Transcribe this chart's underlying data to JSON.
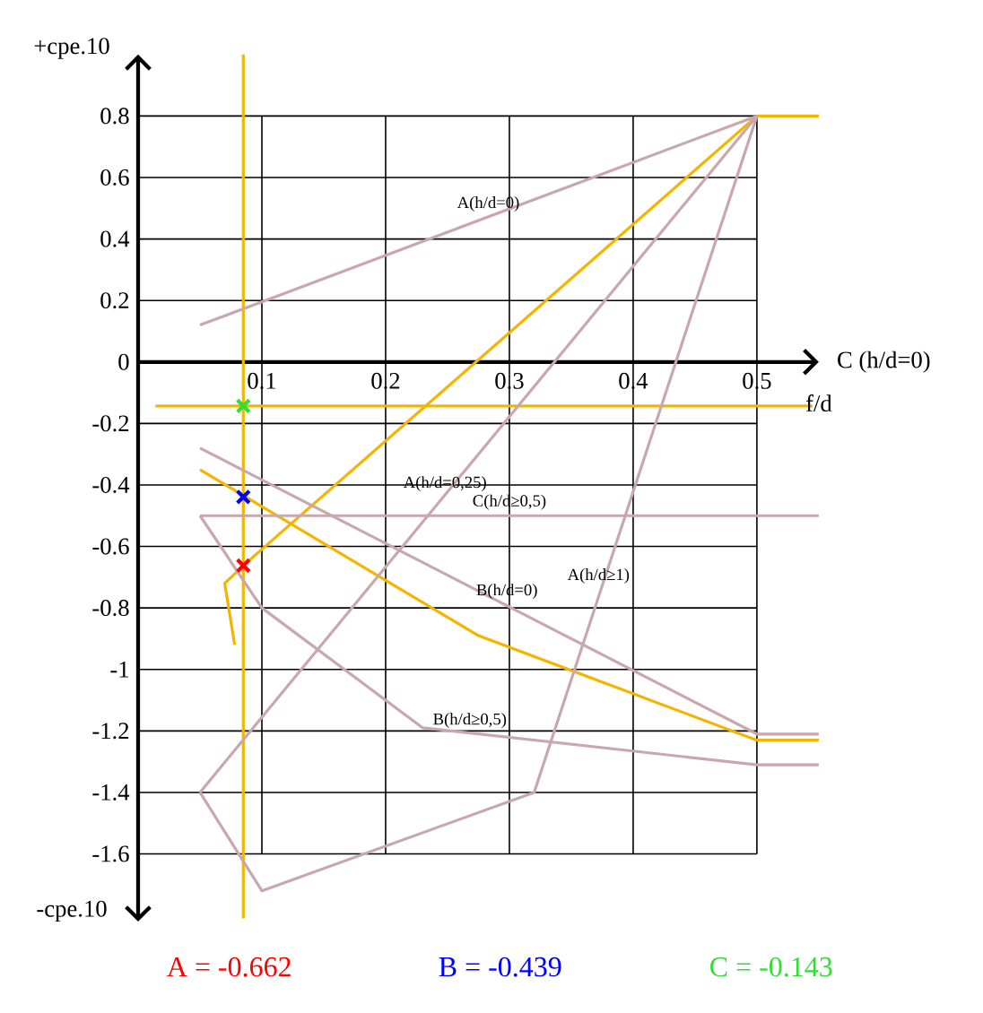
{
  "chart_data": {
    "type": "line",
    "ylabel": "+cpe.10",
    "xlabel": "f/d",
    "xlim": [
      0,
      0.55
    ],
    "ylim": [
      -1.82,
      1.0
    ],
    "xticks": [
      0.1,
      0.2,
      0.3,
      0.4,
      0.5
    ],
    "yticks": [
      -1.6,
      -1.4,
      -1.2,
      -1,
      -0.8,
      -0.6,
      -0.4,
      -0.2,
      0,
      0.2,
      0.4,
      0.6,
      0.8
    ],
    "grid": true,
    "legend": "bottom",
    "series": [
      {
        "color": "#f5b400",
        "x": [
          0.085,
          0.085
        ],
        "values": [
          1.0,
          -1.81
        ]
      },
      {
        "color": "#f5b400",
        "x": [
          0.014,
          0.545
        ],
        "values": [
          -0.143,
          -0.143
        ]
      },
      {
        "color": "#f5b400",
        "x": [
          0.5,
          0.55
        ],
        "values": [
          0.8,
          0.8
        ]
      },
      {
        "color": "#f5b400",
        "x": [
          0.5,
          0.085,
          0.07,
          0.078
        ],
        "values": [
          0.8,
          -0.662,
          -0.72,
          -0.92
        ]
      },
      {
        "color": "#f5b400",
        "x": [
          0.05,
          0.275,
          0.5,
          0.55
        ],
        "values": [
          -0.35,
          -0.89,
          -1.23,
          -1.23
        ]
      },
      {
        "color": "#c8a8ad",
        "x": [
          0.05,
          0.5
        ],
        "values": [
          0.12,
          0.8
        ]
      },
      {
        "color": "#c8a8ad",
        "x": [
          0.05,
          0.5
        ],
        "values": [
          -1.4,
          0.8
        ]
      },
      {
        "color": "#c8a8ad",
        "x": [
          0.05,
          0.1,
          0.32,
          0.5
        ],
        "values": [
          -1.4,
          -1.72,
          -1.4,
          0.8
        ]
      },
      {
        "color": "#c8a8ad",
        "x": [
          0.05,
          0.5,
          0.55
        ],
        "values": [
          -0.28,
          -1.21,
          -1.21
        ]
      },
      {
        "color": "#c8a8ad",
        "x": [
          0.05,
          0.55
        ],
        "values": [
          -0.5,
          -0.5
        ]
      },
      {
        "color": "#c8a8ad",
        "x": [
          0.05,
          0.1,
          0.23,
          0.5,
          0.55
        ],
        "values": [
          -0.5,
          -0.8,
          -1.19,
          -1.31,
          -1.31
        ]
      },
      {
        "type": "scatter",
        "marker": "cross",
        "name": "A = -0.662",
        "color": "#ff0000",
        "x": [
          0.085
        ],
        "values": [
          -0.662
        ]
      },
      {
        "type": "scatter",
        "marker": "cross",
        "name": "B = -0.439",
        "color": "#0000ff",
        "x": [
          0.085
        ],
        "values": [
          -0.439
        ]
      },
      {
        "type": "scatter",
        "marker": "cross",
        "name": "C = -0.143",
        "color": "#33dd33",
        "x": [
          0.085
        ],
        "values": [
          -0.143
        ]
      }
    ],
    "annotations": [
      "-cpe.10",
      {
        "text": "A(h/d=0)",
        "x": 0.283,
        "y": 0.48
      },
      {
        "text": "A(h/d=0,25)",
        "x": 0.248,
        "y": -0.43
      },
      {
        "text": "C(h/d≥0,5)",
        "x": 0.3,
        "y": -0.49
      },
      {
        "text": "B(h/d=0)",
        "x": 0.298,
        "y": -0.78
      },
      {
        "text": "A(h/d≥1)",
        "x": 0.372,
        "y": -0.73
      },
      {
        "text": "B(h/d≥0,5)",
        "x": 0.268,
        "y": -1.2
      },
      "C (h/d=0)"
    ]
  }
}
